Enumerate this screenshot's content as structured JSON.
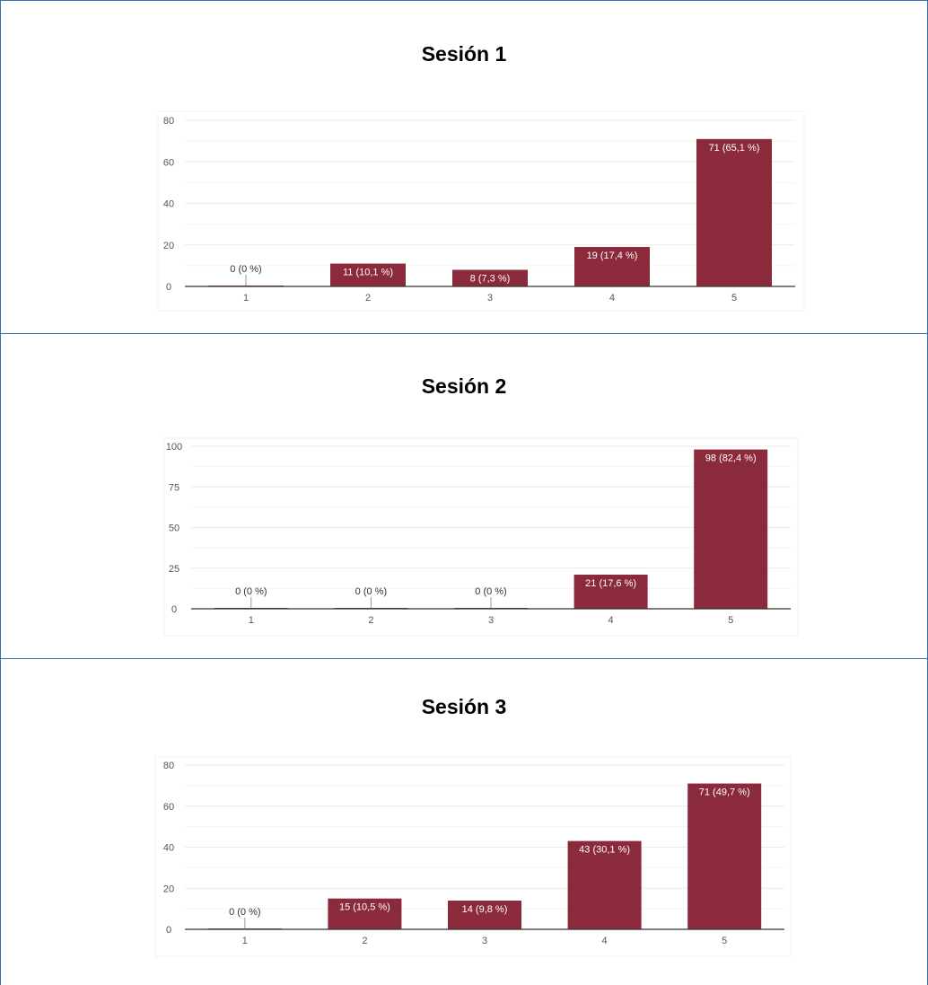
{
  "colors": {
    "bar": "#8b2a3a",
    "border": "#2e75b6",
    "grid": "#ebebeb",
    "axis": "#555555"
  },
  "chart_data": [
    {
      "type": "bar",
      "title": "Sesión 1",
      "categories": [
        "1",
        "2",
        "3",
        "4",
        "5"
      ],
      "values": [
        0,
        11,
        8,
        19,
        71
      ],
      "data_labels": [
        "0 (0 %)",
        "11 (10,1 %)",
        "8 (7,3 %)",
        "19 (17,4 %)",
        "71 (65,1 %)"
      ],
      "yticks": [
        "0",
        "20",
        "40",
        "60",
        "80"
      ],
      "ylim": [
        0,
        80
      ],
      "grid": true
    },
    {
      "type": "bar",
      "title": "Sesión 2",
      "categories": [
        "1",
        "2",
        "3",
        "4",
        "5"
      ],
      "values": [
        0,
        0,
        0,
        21,
        98
      ],
      "data_labels": [
        "0 (0 %)",
        "0 (0 %)",
        "0 (0 %)",
        "21 (17,6 %)",
        "98 (82,4 %)"
      ],
      "yticks": [
        "0",
        "25",
        "50",
        "75",
        "100"
      ],
      "ylim": [
        0,
        100
      ],
      "grid": true
    },
    {
      "type": "bar",
      "title": "Sesión 3",
      "categories": [
        "1",
        "2",
        "3",
        "4",
        "5"
      ],
      "values": [
        0,
        15,
        14,
        43,
        71
      ],
      "data_labels": [
        "0 (0 %)",
        "15 (10,5 %)",
        "14 (9,8 %)",
        "43 (30,1 %)",
        "71 (49,7 %)"
      ],
      "yticks": [
        "0",
        "20",
        "40",
        "60",
        "80"
      ],
      "ylim": [
        0,
        80
      ],
      "grid": true
    }
  ]
}
